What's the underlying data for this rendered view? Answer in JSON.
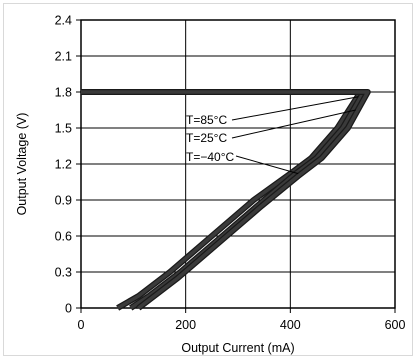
{
  "chart_data": {
    "type": "line",
    "title": "",
    "xlabel": "Output Current  (mA)",
    "ylabel": "Output Voltage (V)",
    "xlim": [
      0,
      600
    ],
    "ylim": [
      0,
      2.4
    ],
    "x_ticks": [
      "0",
      "200",
      "400",
      "600"
    ],
    "y_ticks": [
      "0",
      "0.3",
      "0.6",
      "0.9",
      "1.2",
      "1.5",
      "1.8",
      "2.1",
      "2.4"
    ],
    "grid": true,
    "line_color": "#3a3a3a",
    "series": [
      {
        "name": "T=85°C",
        "points": [
          [
            0,
            1.8
          ],
          [
            534,
            1.8
          ],
          [
            490,
            1.5
          ],
          [
            440,
            1.25
          ],
          [
            400,
            1.12
          ],
          [
            330,
            0.9
          ],
          [
            250,
            0.6
          ],
          [
            170,
            0.3
          ],
          [
            110,
            0.1
          ],
          [
            70,
            0
          ]
        ]
      },
      {
        "name": "T=25°C",
        "points": [
          [
            0,
            1.8
          ],
          [
            540,
            1.8
          ],
          [
            500,
            1.5
          ],
          [
            450,
            1.25
          ],
          [
            410,
            1.12
          ],
          [
            350,
            0.9
          ],
          [
            270,
            0.6
          ],
          [
            190,
            0.3
          ],
          [
            130,
            0.1
          ],
          [
            95,
            0
          ]
        ]
      },
      {
        "name": "T=−40°C",
        "points": [
          [
            0,
            1.8
          ],
          [
            548,
            1.8
          ],
          [
            510,
            1.5
          ],
          [
            460,
            1.25
          ],
          [
            415,
            1.1
          ],
          [
            345,
            0.85
          ],
          [
            265,
            0.55
          ],
          [
            185,
            0.25
          ],
          [
            110,
            0
          ]
        ]
      }
    ],
    "annotations": [
      {
        "text": "T=85°C",
        "series": 0,
        "at": [
          530,
          1.76
        ]
      },
      {
        "text": "T=25°C",
        "series": 1,
        "at": [
          525,
          1.65
        ]
      },
      {
        "text": "T=−40°C",
        "series": 2,
        "at": [
          415,
          1.12
        ]
      }
    ]
  }
}
